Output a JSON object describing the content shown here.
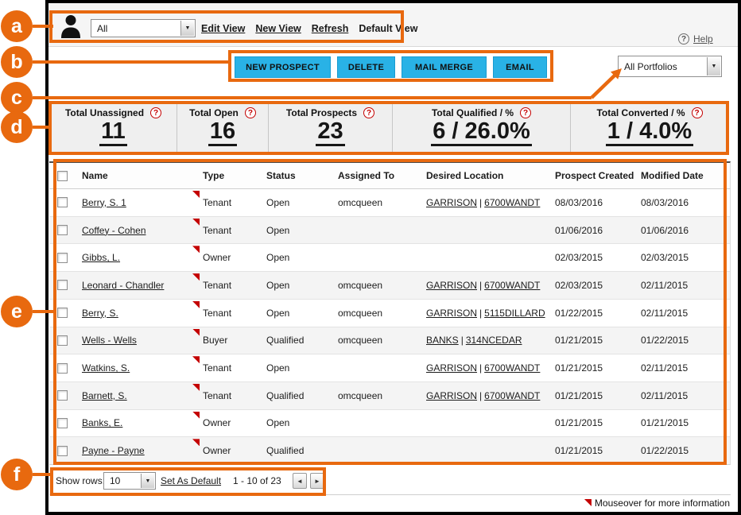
{
  "colors": {
    "annotation_orange": "#E8690F",
    "button_cyan": "#29B2E6",
    "marker_red": "#C40000",
    "window_frame": "#000000"
  },
  "icons": {
    "help_glyph": "?",
    "stat_help_glyph": "?",
    "dropdown_arrow": "▼",
    "pagination_prev": "◄",
    "pagination_next": "►"
  },
  "view_bar": {
    "view_select_value": "All",
    "links": [
      "Edit View",
      "New View",
      "Refresh",
      "Default View"
    ],
    "help_label": "Help"
  },
  "toolbar": {
    "buttons": [
      "NEW PROSPECT",
      "DELETE",
      "MAIL MERGE",
      "EMAIL"
    ],
    "portfolio_select_value": "All Portfolios"
  },
  "stats": [
    {
      "label": "Total Unassigned",
      "value": "11"
    },
    {
      "label": "Total Open",
      "value": "16"
    },
    {
      "label": "Total Prospects",
      "value": "23"
    },
    {
      "label": "Total Qualified / %",
      "value": "6 / 26.0%"
    },
    {
      "label": "Total Converted / %",
      "value": "1 / 4.0%"
    }
  ],
  "table": {
    "columns": [
      "Name",
      "Type",
      "Status",
      "Assigned To",
      "Desired Location",
      "Prospect Created",
      "Modified Date"
    ],
    "rows": [
      {
        "name": "Berry, S.  1",
        "type": "Tenant",
        "status": "Open",
        "assigned_to": "omcqueen",
        "desired_location": "GARRISON | 6700WANDT",
        "prospect_created": "08/03/2016",
        "modified_date": "08/03/2016"
      },
      {
        "name": "Coffey - Cohen",
        "type": "Tenant",
        "status": "Open",
        "assigned_to": "",
        "desired_location": "",
        "prospect_created": "01/06/2016",
        "modified_date": "01/06/2016"
      },
      {
        "name": "Gibbs, L.",
        "type": "Owner",
        "status": "Open",
        "assigned_to": "",
        "desired_location": "",
        "prospect_created": "02/03/2015",
        "modified_date": "02/03/2015"
      },
      {
        "name": "Leonard - Chandler",
        "type": "Tenant",
        "status": "Open",
        "assigned_to": "omcqueen",
        "desired_location": "GARRISON | 6700WANDT",
        "prospect_created": "02/03/2015",
        "modified_date": "02/11/2015"
      },
      {
        "name": "Berry, S.",
        "type": "Tenant",
        "status": "Open",
        "assigned_to": "omcqueen",
        "desired_location": "GARRISON | 5115DILLARD",
        "prospect_created": "01/22/2015",
        "modified_date": "02/11/2015"
      },
      {
        "name": "Wells - Wells",
        "type": "Buyer",
        "status": "Qualified",
        "assigned_to": "omcqueen",
        "desired_location": "BANKS | 314NCEDAR",
        "prospect_created": "01/21/2015",
        "modified_date": "01/22/2015"
      },
      {
        "name": "Watkins, S.",
        "type": "Tenant",
        "status": "Open",
        "assigned_to": "",
        "desired_location": "GARRISON | 6700WANDT",
        "prospect_created": "01/21/2015",
        "modified_date": "02/11/2015"
      },
      {
        "name": "Barnett, S.",
        "type": "Tenant",
        "status": "Qualified",
        "assigned_to": "omcqueen",
        "desired_location": "GARRISON | 6700WANDT",
        "prospect_created": "01/21/2015",
        "modified_date": "02/11/2015"
      },
      {
        "name": "Banks, E.",
        "type": "Owner",
        "status": "Open",
        "assigned_to": "",
        "desired_location": "",
        "prospect_created": "01/21/2015",
        "modified_date": "01/21/2015"
      },
      {
        "name": "Payne - Payne",
        "type": "Owner",
        "status": "Qualified",
        "assigned_to": "",
        "desired_location": "",
        "prospect_created": "01/21/2015",
        "modified_date": "01/22/2015"
      }
    ]
  },
  "footer": {
    "show_rows_label": "Show rows:",
    "show_rows_value": "10",
    "set_default_label": "Set As Default",
    "range_text": "1 - 10 of 23"
  },
  "annotations": {
    "callouts": [
      "a",
      "b",
      "c",
      "d",
      "e",
      "f"
    ],
    "note_text": "Mouseover for more information"
  }
}
